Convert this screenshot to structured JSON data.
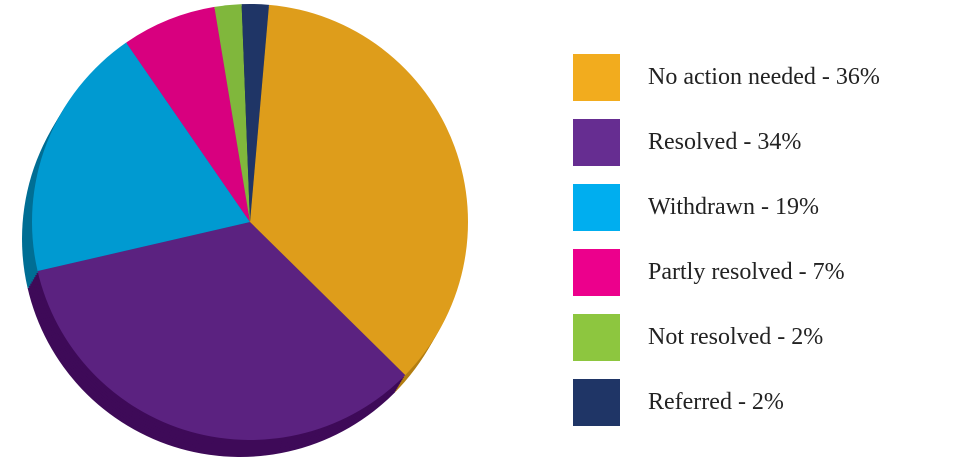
{
  "chart_data": {
    "type": "pie",
    "title": "",
    "slices": [
      {
        "label": "No action needed - 36%",
        "value": 36,
        "color": "#DE9D1B",
        "legend_color": "#F2AC1E",
        "side_color": "#B37E12"
      },
      {
        "label": "Resolved - 34%",
        "value": 34,
        "color": "#5B2280",
        "legend_color": "#662D91",
        "side_color": "#3E0A58"
      },
      {
        "label": "Withdrawn - 19%",
        "value": 19,
        "color": "#009AD1",
        "legend_color": "#00AEEF",
        "side_color": "#006E94"
      },
      {
        "label": "Partly resolved - 7%",
        "value": 7,
        "color": "#D8007F",
        "legend_color": "#EC008C",
        "side_color": "#9E005C"
      },
      {
        "label": "Not resolved - 2%",
        "value": 2,
        "color": "#80B73C",
        "legend_color": "#8DC63F",
        "side_color": "#5E8A2A"
      },
      {
        "label": "Referred - 2%",
        "value": 2,
        "color": "#1F3566",
        "legend_color": "#1F3566",
        "side_color": "#101E3D"
      }
    ],
    "start_angle_deg": 5,
    "direction": "clockwise",
    "legend_position": "right"
  }
}
